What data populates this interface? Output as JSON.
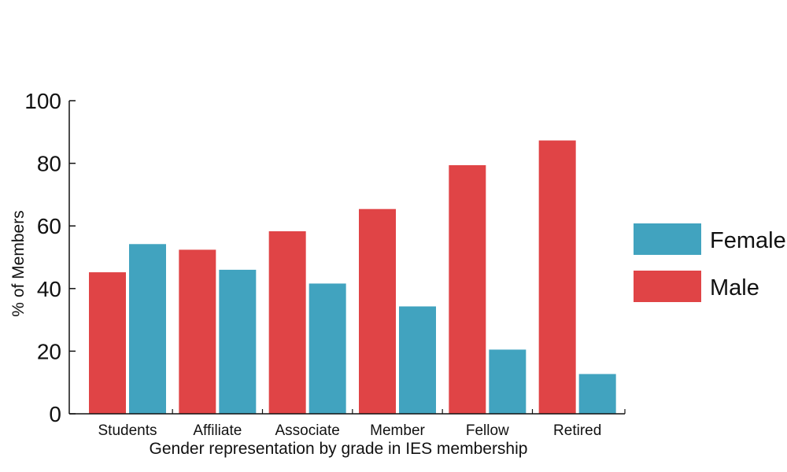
{
  "chart_data": {
    "type": "bar",
    "categories": [
      "Students",
      "Affiliate",
      "Associate",
      "Member",
      "Fellow",
      "Retired"
    ],
    "series": [
      {
        "name": "Male",
        "color": "#e04446",
        "values": [
          45.2,
          52.4,
          58.3,
          65.4,
          79.4,
          87.3
        ]
      },
      {
        "name": "Female",
        "color": "#41a3bf",
        "values": [
          54.2,
          46.0,
          41.6,
          34.3,
          20.5,
          12.7
        ]
      }
    ],
    "title": "",
    "xlabel": "Gender representation by grade in IES membership",
    "ylabel": "% of Members",
    "ylim": [
      0,
      100
    ],
    "yticks": [
      0,
      20,
      40,
      60,
      80,
      100
    ],
    "grid": false,
    "legend": {
      "position": "right",
      "entries": [
        {
          "name": "Female",
          "color": "#41a3bf"
        },
        {
          "name": "Male",
          "color": "#e04446"
        }
      ]
    }
  }
}
